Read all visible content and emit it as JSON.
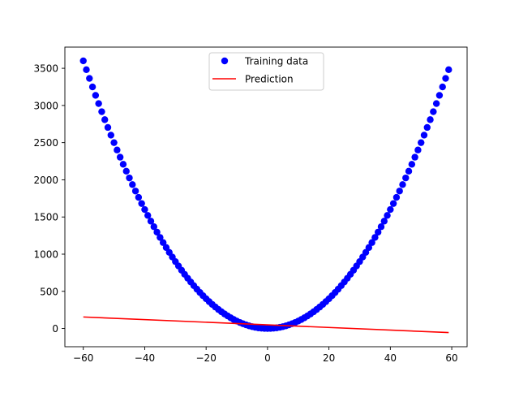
{
  "chart_data": {
    "type": "scatter",
    "title": "",
    "xlabel": "",
    "ylabel": "",
    "xlim": [
      -66,
      65
    ],
    "ylim": [
      -245,
      3785
    ],
    "x_ticks": [
      -60,
      -40,
      -20,
      0,
      20,
      40,
      60
    ],
    "y_ticks": [
      0,
      500,
      1000,
      1500,
      2000,
      2500,
      3000,
      3500
    ],
    "grid": false,
    "legend": {
      "placement": "top-center",
      "entries": [
        "Training data",
        "Prediction"
      ]
    },
    "series": [
      {
        "name": "Training data",
        "kind": "scatter",
        "color": "#0000ff",
        "x_start": -60,
        "x_end": 59,
        "x_step": 1,
        "formula": "y = x^2"
      },
      {
        "name": "Prediction",
        "kind": "line",
        "color": "#ff0000",
        "x": [
          -60,
          59
        ],
        "y": [
          155,
          -55
        ]
      }
    ]
  }
}
